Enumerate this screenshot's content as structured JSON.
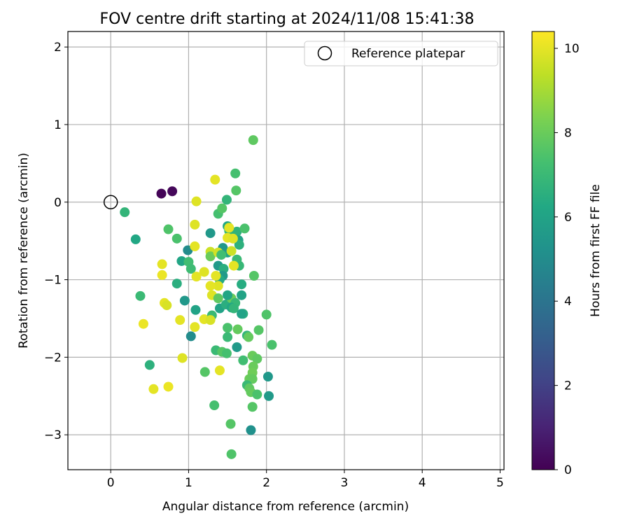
{
  "chart_data": {
    "type": "scatter",
    "title": "FOV centre drift starting at 2024/11/08 15:41:38",
    "xlabel": "Angular distance from reference (arcmin)",
    "ylabel": "Rotation from reference (arcmin)",
    "xlim": [
      -0.55,
      5.05
    ],
    "ylim": [
      -3.45,
      2.2
    ],
    "xticks": [
      0,
      1,
      2,
      3,
      4,
      5
    ],
    "yticks": [
      -3,
      -2,
      -1,
      0,
      1,
      2
    ],
    "grid": true,
    "legend": {
      "position": "top-right",
      "label": "Reference platepar"
    },
    "reference": {
      "x": 0,
      "y": 0
    },
    "colorbar": {
      "label": "Hours from first FF file",
      "min": 0,
      "max": 10.4,
      "ticks": [
        0,
        2,
        4,
        6,
        8,
        10
      ],
      "colormap": "viridis"
    },
    "points": [
      {
        "x": 0.65,
        "y": 0.11,
        "c": 0.1
      },
      {
        "x": 0.79,
        "y": 0.14,
        "c": 0.2
      },
      {
        "x": 0.18,
        "y": -0.13,
        "c": 6.8
      },
      {
        "x": 0.32,
        "y": -0.48,
        "c": 6.2
      },
      {
        "x": 0.74,
        "y": -0.35,
        "c": 7.5
      },
      {
        "x": 0.85,
        "y": -0.47,
        "c": 7.4
      },
      {
        "x": 0.91,
        "y": -0.76,
        "c": 6.1
      },
      {
        "x": 0.99,
        "y": -0.62,
        "c": 5.0
      },
      {
        "x": 1.0,
        "y": -0.77,
        "c": 7.2
      },
      {
        "x": 1.03,
        "y": -0.86,
        "c": 7.1
      },
      {
        "x": 0.85,
        "y": -1.05,
        "c": 6.5
      },
      {
        "x": 0.95,
        "y": -1.27,
        "c": 5.5
      },
      {
        "x": 1.09,
        "y": -1.39,
        "c": 6.0
      },
      {
        "x": 1.03,
        "y": -1.73,
        "c": 5.0
      },
      {
        "x": 0.38,
        "y": -1.21,
        "c": 7.0
      },
      {
        "x": 0.5,
        "y": -2.1,
        "c": 6.6
      },
      {
        "x": 0.66,
        "y": -0.8,
        "c": 10.0
      },
      {
        "x": 0.66,
        "y": -0.94,
        "c": 10.1
      },
      {
        "x": 0.69,
        "y": -1.3,
        "c": 10.0
      },
      {
        "x": 0.72,
        "y": -1.33,
        "c": 9.8
      },
      {
        "x": 0.42,
        "y": -1.57,
        "c": 10.1
      },
      {
        "x": 0.89,
        "y": -1.52,
        "c": 10.0
      },
      {
        "x": 0.92,
        "y": -2.01,
        "c": 9.9
      },
      {
        "x": 0.55,
        "y": -2.41,
        "c": 10.0
      },
      {
        "x": 0.74,
        "y": -2.38,
        "c": 10.1
      },
      {
        "x": 1.08,
        "y": -1.61,
        "c": 10.0
      },
      {
        "x": 1.2,
        "y": -1.51,
        "c": 10.0
      },
      {
        "x": 1.2,
        "y": -0.9,
        "c": 9.9
      },
      {
        "x": 1.1,
        "y": -0.96,
        "c": 10.0
      },
      {
        "x": 1.08,
        "y": -0.57,
        "c": 10.0
      },
      {
        "x": 1.08,
        "y": -0.29,
        "c": 9.9
      },
      {
        "x": 1.1,
        "y": 0.01,
        "c": 9.9
      },
      {
        "x": 1.34,
        "y": 0.29,
        "c": 10.0
      },
      {
        "x": 1.28,
        "y": -0.64,
        "c": 9.6
      },
      {
        "x": 1.28,
        "y": -0.7,
        "c": 8.0
      },
      {
        "x": 1.28,
        "y": -0.4,
        "c": 5.5
      },
      {
        "x": 1.38,
        "y": -0.15,
        "c": 7.3
      },
      {
        "x": 1.43,
        "y": -0.08,
        "c": 7.6
      },
      {
        "x": 1.49,
        "y": 0.03,
        "c": 6.8
      },
      {
        "x": 1.61,
        "y": 0.15,
        "c": 7.6
      },
      {
        "x": 1.6,
        "y": 0.37,
        "c": 7.3
      },
      {
        "x": 1.83,
        "y": 0.8,
        "c": 7.8
      },
      {
        "x": 1.5,
        "y": -0.31,
        "c": 6.2
      },
      {
        "x": 1.52,
        "y": -0.37,
        "c": 6.9
      },
      {
        "x": 1.62,
        "y": -0.38,
        "c": 6.7
      },
      {
        "x": 1.72,
        "y": -0.34,
        "c": 7.4
      },
      {
        "x": 1.64,
        "y": -0.49,
        "c": 6.0
      },
      {
        "x": 1.65,
        "y": -0.55,
        "c": 6.6
      },
      {
        "x": 1.5,
        "y": -0.46,
        "c": 10.0
      },
      {
        "x": 1.57,
        "y": -0.47,
        "c": 9.9
      },
      {
        "x": 1.52,
        "y": -0.33,
        "c": 10.0
      },
      {
        "x": 1.5,
        "y": -0.65,
        "c": 6.0
      },
      {
        "x": 1.44,
        "y": -0.59,
        "c": 5.5
      },
      {
        "x": 1.38,
        "y": -0.65,
        "c": 9.7
      },
      {
        "x": 1.42,
        "y": -0.68,
        "c": 7.2
      },
      {
        "x": 1.55,
        "y": -0.63,
        "c": 9.6
      },
      {
        "x": 1.62,
        "y": -0.74,
        "c": 7.0
      },
      {
        "x": 1.65,
        "y": -0.82,
        "c": 6.9
      },
      {
        "x": 1.58,
        "y": -0.82,
        "c": 10.0
      },
      {
        "x": 1.38,
        "y": -0.82,
        "c": 5.6
      },
      {
        "x": 1.45,
        "y": -0.86,
        "c": 6.5
      },
      {
        "x": 1.44,
        "y": -0.95,
        "c": 5.6
      },
      {
        "x": 1.4,
        "y": -1.0,
        "c": 6.3
      },
      {
        "x": 1.35,
        "y": -0.95,
        "c": 10.0
      },
      {
        "x": 1.38,
        "y": -1.08,
        "c": 9.9
      },
      {
        "x": 1.28,
        "y": -1.08,
        "c": 10.0
      },
      {
        "x": 1.3,
        "y": -1.2,
        "c": 9.9
      },
      {
        "x": 1.38,
        "y": -1.24,
        "c": 7.8
      },
      {
        "x": 1.4,
        "y": -1.37,
        "c": 6.0
      },
      {
        "x": 1.48,
        "y": -1.32,
        "c": 6.5
      },
      {
        "x": 1.55,
        "y": -1.24,
        "c": 8.0
      },
      {
        "x": 1.6,
        "y": -1.3,
        "c": 6.9
      },
      {
        "x": 1.55,
        "y": -1.36,
        "c": 6.2
      },
      {
        "x": 1.58,
        "y": -1.37,
        "c": 6.8
      },
      {
        "x": 1.5,
        "y": -1.2,
        "c": 6.1
      },
      {
        "x": 1.68,
        "y": -1.2,
        "c": 6.0
      },
      {
        "x": 1.68,
        "y": -1.06,
        "c": 6.4
      },
      {
        "x": 1.7,
        "y": -1.44,
        "c": 6.5
      },
      {
        "x": 1.68,
        "y": -1.44,
        "c": 6.0
      },
      {
        "x": 1.84,
        "y": -0.95,
        "c": 7.6
      },
      {
        "x": 1.3,
        "y": -1.46,
        "c": 7.0
      },
      {
        "x": 1.28,
        "y": -1.52,
        "c": 9.8
      },
      {
        "x": 1.5,
        "y": -1.62,
        "c": 7.4
      },
      {
        "x": 1.63,
        "y": -1.64,
        "c": 7.9
      },
      {
        "x": 1.5,
        "y": -1.74,
        "c": 7.0
      },
      {
        "x": 1.75,
        "y": -1.72,
        "c": 6.8
      },
      {
        "x": 1.77,
        "y": -1.74,
        "c": 7.9
      },
      {
        "x": 1.9,
        "y": -1.65,
        "c": 7.6
      },
      {
        "x": 2.0,
        "y": -1.45,
        "c": 7.5
      },
      {
        "x": 2.07,
        "y": -1.84,
        "c": 7.4
      },
      {
        "x": 1.35,
        "y": -1.91,
        "c": 7.0
      },
      {
        "x": 1.43,
        "y": -1.93,
        "c": 7.6
      },
      {
        "x": 1.49,
        "y": -1.95,
        "c": 7.3
      },
      {
        "x": 1.4,
        "y": -2.17,
        "c": 10.0
      },
      {
        "x": 1.21,
        "y": -2.19,
        "c": 7.6
      },
      {
        "x": 1.62,
        "y": -1.87,
        "c": 5.6
      },
      {
        "x": 1.7,
        "y": -2.04,
        "c": 7.2
      },
      {
        "x": 1.82,
        "y": -1.98,
        "c": 8.0
      },
      {
        "x": 1.88,
        "y": -2.02,
        "c": 7.8
      },
      {
        "x": 1.83,
        "y": -2.12,
        "c": 8.0
      },
      {
        "x": 1.82,
        "y": -2.2,
        "c": 8.1
      },
      {
        "x": 1.78,
        "y": -2.28,
        "c": 8.0
      },
      {
        "x": 1.82,
        "y": -2.28,
        "c": 7.9
      },
      {
        "x": 1.75,
        "y": -2.36,
        "c": 7.0
      },
      {
        "x": 1.78,
        "y": -2.4,
        "c": 7.8
      },
      {
        "x": 1.8,
        "y": -2.45,
        "c": 7.9
      },
      {
        "x": 1.88,
        "y": -2.48,
        "c": 7.4
      },
      {
        "x": 2.02,
        "y": -2.25,
        "c": 5.5
      },
      {
        "x": 2.03,
        "y": -2.5,
        "c": 5.6
      },
      {
        "x": 1.33,
        "y": -2.62,
        "c": 7.3
      },
      {
        "x": 1.82,
        "y": -2.64,
        "c": 7.6
      },
      {
        "x": 1.54,
        "y": -2.86,
        "c": 7.6
      },
      {
        "x": 1.8,
        "y": -2.94,
        "c": 5.2
      },
      {
        "x": 1.55,
        "y": -3.25,
        "c": 7.5
      }
    ]
  }
}
